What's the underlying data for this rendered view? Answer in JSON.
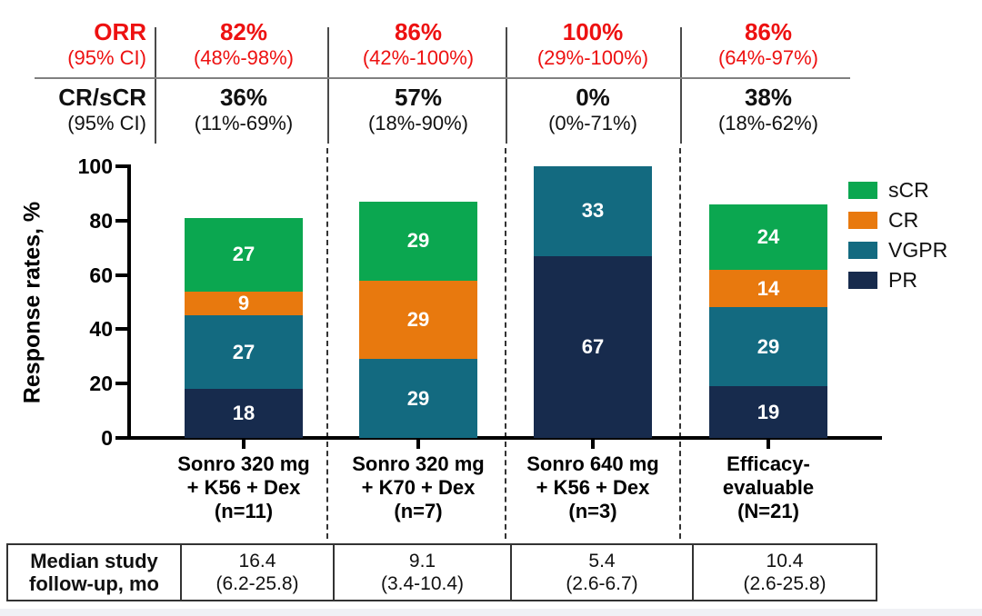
{
  "header": {
    "orr": {
      "label": "ORR",
      "sublabel": "(95% CI)",
      "color": "#ed1111",
      "values": [
        "82%",
        "86%",
        "100%",
        "86%"
      ],
      "cis": [
        "(48%-98%)",
        "(42%-100%)",
        "(29%-100%)",
        "(64%-97%)"
      ]
    },
    "crscr": {
      "label": "CR/sCR",
      "sublabel": "(95% CI)",
      "color": "#111111",
      "values": [
        "36%",
        "57%",
        "0%",
        "38%"
      ],
      "cis": [
        "(11%-69%)",
        "(18%-90%)",
        "(0%-71%)",
        "(18%-62%)"
      ]
    }
  },
  "chart_data": {
    "type": "bar",
    "stacked": true,
    "title": "",
    "xlabel": "",
    "ylabel": "Response rates, %",
    "ylim": [
      0,
      100
    ],
    "yticks": [
      0,
      20,
      40,
      60,
      80,
      100
    ],
    "grid": false,
    "categories": [
      "Sonro 320 mg\n+ K56 + Dex\n(n=11)",
      "Sonro 320 mg\n+ K70 + Dex\n(n=7)",
      "Sonro 640 mg\n+ K56 + Dex\n(n=3)",
      "Efficacy-\nevaluable\n(N=21)"
    ],
    "series": [
      {
        "name": "PR",
        "color": "#172b4d",
        "values": [
          18,
          0,
          67,
          19
        ]
      },
      {
        "name": "VGPR",
        "color": "#136a80",
        "values": [
          27,
          29,
          33,
          29
        ]
      },
      {
        "name": "CR",
        "color": "#e8790e",
        "values": [
          9,
          29,
          0,
          14
        ]
      },
      {
        "name": "sCR",
        "color": "#0ba750",
        "values": [
          27,
          29,
          0,
          24
        ]
      }
    ],
    "legend": {
      "position": "right",
      "entries": [
        "sCR",
        "CR",
        "VGPR",
        "PR"
      ]
    }
  },
  "footer_table": {
    "label": "Median study\nfollow-up, mo",
    "values": [
      "16.4\n(6.2-25.8)",
      "9.1\n(3.4-10.4)",
      "5.4\n(2.6-6.7)",
      "10.4\n(2.6-25.8)"
    ]
  }
}
